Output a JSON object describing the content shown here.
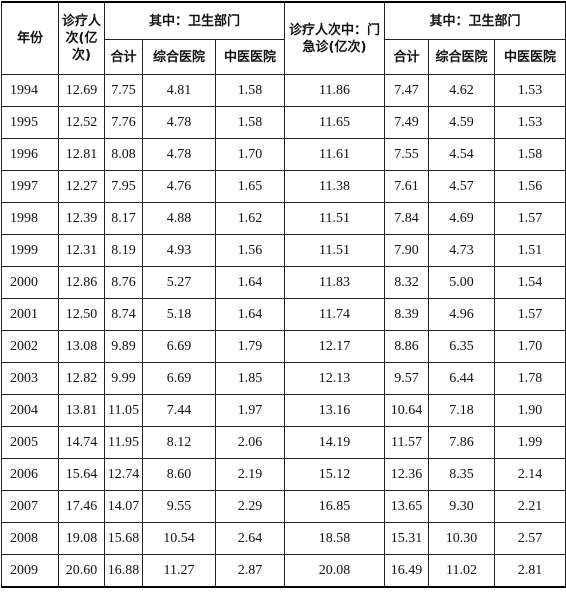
{
  "header": {
    "year": "年份",
    "visits": "诊疗人次(亿次)",
    "group1": "其中：卫生部门",
    "outpatient": "诊疗人次中：门急诊(亿次)",
    "group2": "其中：卫生部门",
    "sub1": [
      "合计",
      "综合医院",
      "中医医院"
    ],
    "sub2": [
      "合计",
      "综合医院",
      "中医医院"
    ]
  },
  "rows": [
    [
      "1994",
      "12.69",
      "7.75",
      "4.81",
      "1.58",
      "11.86",
      "7.47",
      "4.62",
      "1.53"
    ],
    [
      "1995",
      "12.52",
      "7.76",
      "4.78",
      "1.58",
      "11.65",
      "7.49",
      "4.59",
      "1.53"
    ],
    [
      "1996",
      "12.81",
      "8.08",
      "4.78",
      "1.70",
      "11.61",
      "7.55",
      "4.54",
      "1.58"
    ],
    [
      "1997",
      "12.27",
      "7.95",
      "4.76",
      "1.65",
      "11.38",
      "7.61",
      "4.57",
      "1.56"
    ],
    [
      "1998",
      "12.39",
      "8.17",
      "4.88",
      "1.62",
      "11.51",
      "7.84",
      "4.69",
      "1.57"
    ],
    [
      "1999",
      "12.31",
      "8.19",
      "4.93",
      "1.56",
      "11.51",
      "7.90",
      "4.73",
      "1.51"
    ],
    [
      "2000",
      "12.86",
      "8.76",
      "5.27",
      "1.64",
      "11.83",
      "8.32",
      "5.00",
      "1.54"
    ],
    [
      "2001",
      "12.50",
      "8.74",
      "5.18",
      "1.64",
      "11.74",
      "8.39",
      "4.96",
      "1.57"
    ],
    [
      "2002",
      "13.08",
      "9.89",
      "6.69",
      "1.79",
      "12.17",
      "8.86",
      "6.35",
      "1.70"
    ],
    [
      "2003",
      "12.82",
      "9.99",
      "6.69",
      "1.85",
      "12.13",
      "9.57",
      "6.44",
      "1.78"
    ],
    [
      "2004",
      "13.81",
      "11.05",
      "7.44",
      "1.97",
      "13.16",
      "10.64",
      "7.18",
      "1.90"
    ],
    [
      "2005",
      "14.74",
      "11.95",
      "8.12",
      "2.06",
      "14.19",
      "11.57",
      "7.86",
      "1.99"
    ],
    [
      "2006",
      "15.64",
      "12.74",
      "8.60",
      "2.19",
      "15.12",
      "12.36",
      "8.35",
      "2.14"
    ],
    [
      "2007",
      "17.46",
      "14.07",
      "9.55",
      "2.29",
      "16.85",
      "13.65",
      "9.30",
      "2.21"
    ],
    [
      "2008",
      "19.08",
      "15.68",
      "10.54",
      "2.64",
      "18.58",
      "15.31",
      "10.30",
      "2.57"
    ],
    [
      "2009",
      "20.60",
      "16.88",
      "11.27",
      "2.87",
      "20.08",
      "16.49",
      "11.02",
      "2.81"
    ]
  ]
}
